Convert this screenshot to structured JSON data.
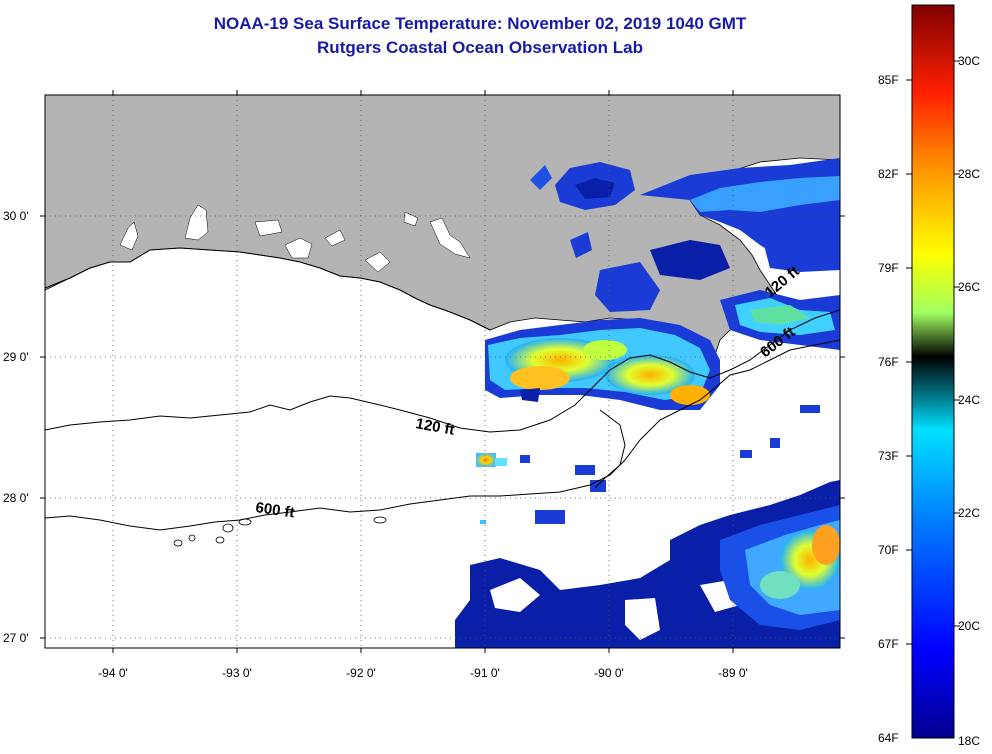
{
  "title": {
    "line1": "NOAA-19 Sea Surface Temperature:  November 02, 2019 1040 GMT",
    "line2": "Rutgers Coastal Ocean Observation Lab"
  },
  "axes": {
    "lat_labels": [
      "30 0'",
      "29 0'",
      "28 0'",
      "27 0'"
    ],
    "lon_labels": [
      "-94 0'",
      "-93 0'",
      "-92 0'",
      "-91 0'",
      "-90 0'",
      "-89 0'"
    ]
  },
  "contours": {
    "label_120_west": "120 ft",
    "label_600_west": "600 ft",
    "label_120_east": "120 ft",
    "label_600_east": "600 ft"
  },
  "colorbar": {
    "fahrenheit": [
      "85F",
      "82F",
      "79F",
      "76F",
      "73F",
      "70F",
      "67F",
      "64F"
    ],
    "celsius": [
      "30C",
      "28C",
      "26C",
      "24C",
      "22C",
      "20C",
      "18C"
    ]
  },
  "colors": {
    "land": "#b4b4b4",
    "title": "#1a1aa6",
    "ocean_no_data": "#ffffff"
  }
}
